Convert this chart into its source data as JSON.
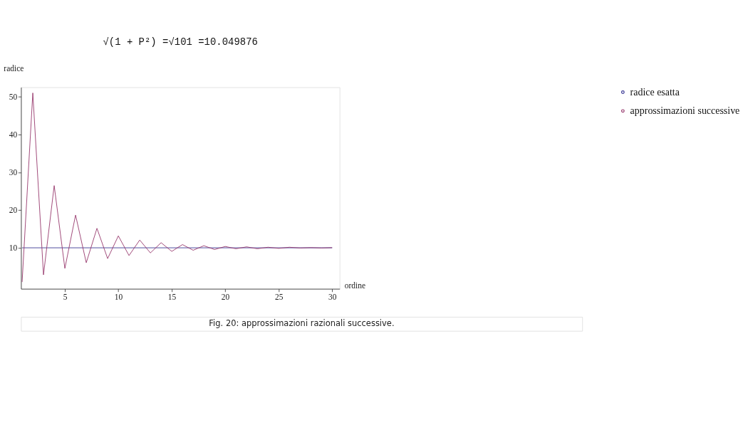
{
  "chart_data": {
    "type": "line",
    "title": "√(1 + P²) =√101 =10.049876",
    "xlabel": "ordine",
    "ylabel": "radice",
    "xlim": [
      0.9,
      30.7
    ],
    "xticks": [
      5,
      10,
      15,
      20,
      25,
      30
    ],
    "ylim": [
      -0.8,
      52.5
    ],
    "yticks": [
      10,
      20,
      30,
      40,
      50
    ],
    "grid": false,
    "legend": "right",
    "marker": "none",
    "line_style": "solid",
    "annotations": [
      "Fig. 20: approssimazioni razionali successive."
    ],
    "series": [
      {
        "name": "radice esatta",
        "color": "#3d3b96",
        "x": [
          1,
          30
        ],
        "values": [
          10.049876,
          10.049876
        ]
      },
      {
        "name": "approssimazioni successive",
        "color": "#983a6e",
        "x": [
          1,
          2,
          3,
          4,
          5,
          6,
          7,
          8,
          9,
          10,
          11,
          12,
          13,
          14,
          15,
          16,
          17,
          18,
          19,
          20,
          21,
          22,
          23,
          24,
          25,
          26,
          27,
          28,
          29,
          30
        ],
        "values": [
          1,
          51,
          2.9,
          26.5,
          4.6,
          18.7,
          6.1,
          15.2,
          7.2,
          13.2,
          8.0,
          12.1,
          8.7,
          11.4,
          9.1,
          10.9,
          9.4,
          10.6,
          9.6,
          10.4,
          9.8,
          10.3,
          9.8,
          10.2,
          9.9,
          10.2,
          10.0,
          10.1,
          10.0,
          10.1
        ]
      }
    ]
  }
}
